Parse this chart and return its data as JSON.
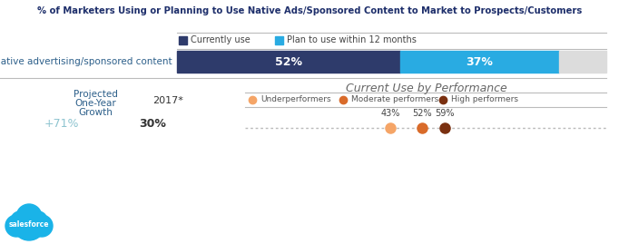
{
  "title": "% of Marketers Using or Planning to Use Native Ads/Sponsored Content to Market to Prospects/Customers",
  "bar_label": "Native advertising/sponsored content",
  "currently_use_pct": 52,
  "plan_use_pct": 37,
  "remainder_pct": 11,
  "bar_color_current": "#2e3b6b",
  "bar_color_plan": "#29abe2",
  "bar_color_remainder": "#dcdcdc",
  "legend_currently_use": "Currently use",
  "legend_plan_use": "Plan to use within 12 months",
  "section2_title": "Current Use by Performance",
  "proj_label": "Projected\nOne-Year\nGrowth",
  "year_label": "2017*",
  "growth_value": "+71%",
  "year_value": "30%",
  "underperformer_pct": "43%",
  "moderate_pct": "52%",
  "high_pct": "59%",
  "legend2_labels": [
    "Underperformers",
    "Moderate performers",
    "High performers"
  ],
  "legend2_colors": [
    "#f5a567",
    "#d96b2a",
    "#7a3010"
  ],
  "dot_line_color": "#bbbbbb",
  "text_color_teal": "#7ab8c8",
  "text_color_dark": "#2c5f8a",
  "text_color_navy": "#1e2f6b",
  "growth_text_color": "#8ec4d0",
  "background_color": "#ffffff"
}
